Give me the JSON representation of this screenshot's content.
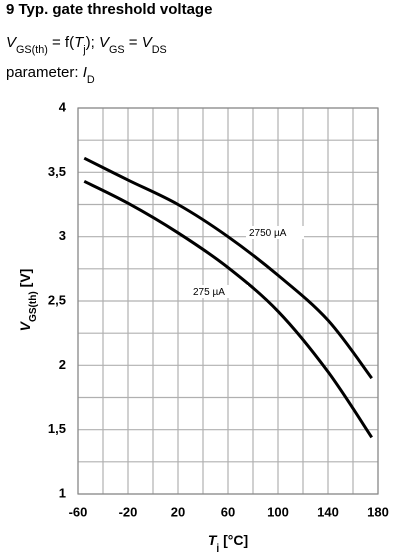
{
  "title": "9 Typ. gate threshold voltage",
  "subtitle": [
    "V",
    "GS(th)",
    " = f(",
    "T",
    "j",
    "); ",
    "V",
    "GS",
    " = ",
    "V",
    "DS"
  ],
  "parameter": [
    "parameter: ",
    "I",
    "D"
  ],
  "chart_data": {
    "type": "line",
    "ylabel": [
      "V",
      "GS(th)",
      " [V]"
    ],
    "xlabel": [
      "T",
      "j",
      " [°C]"
    ],
    "xlim": [
      -60,
      180
    ],
    "xticks": [
      -60,
      -20,
      20,
      60,
      100,
      140,
      180
    ],
    "ylim": [
      1,
      4
    ],
    "yticks": [
      1,
      {
        "value": 1.5,
        "label": "1,5"
      },
      2,
      {
        "value": 2.5,
        "label": "2,5"
      },
      3,
      {
        "value": 3.5,
        "label": "3,5"
      },
      4
    ],
    "grid": true,
    "series": [
      {
        "name": "2750 µA",
        "color": "#000000",
        "x": [
          -55,
          -20,
          20,
          60,
          100,
          140,
          175
        ],
        "values": [
          3.61,
          3.44,
          3.25,
          3.0,
          2.7,
          2.35,
          1.9
        ]
      },
      {
        "name": "275 µA",
        "color": "#000000",
        "x": [
          -55,
          -20,
          20,
          60,
          100,
          140,
          175
        ],
        "values": [
          3.43,
          3.26,
          3.03,
          2.76,
          2.42,
          1.95,
          1.44
        ]
      }
    ]
  }
}
